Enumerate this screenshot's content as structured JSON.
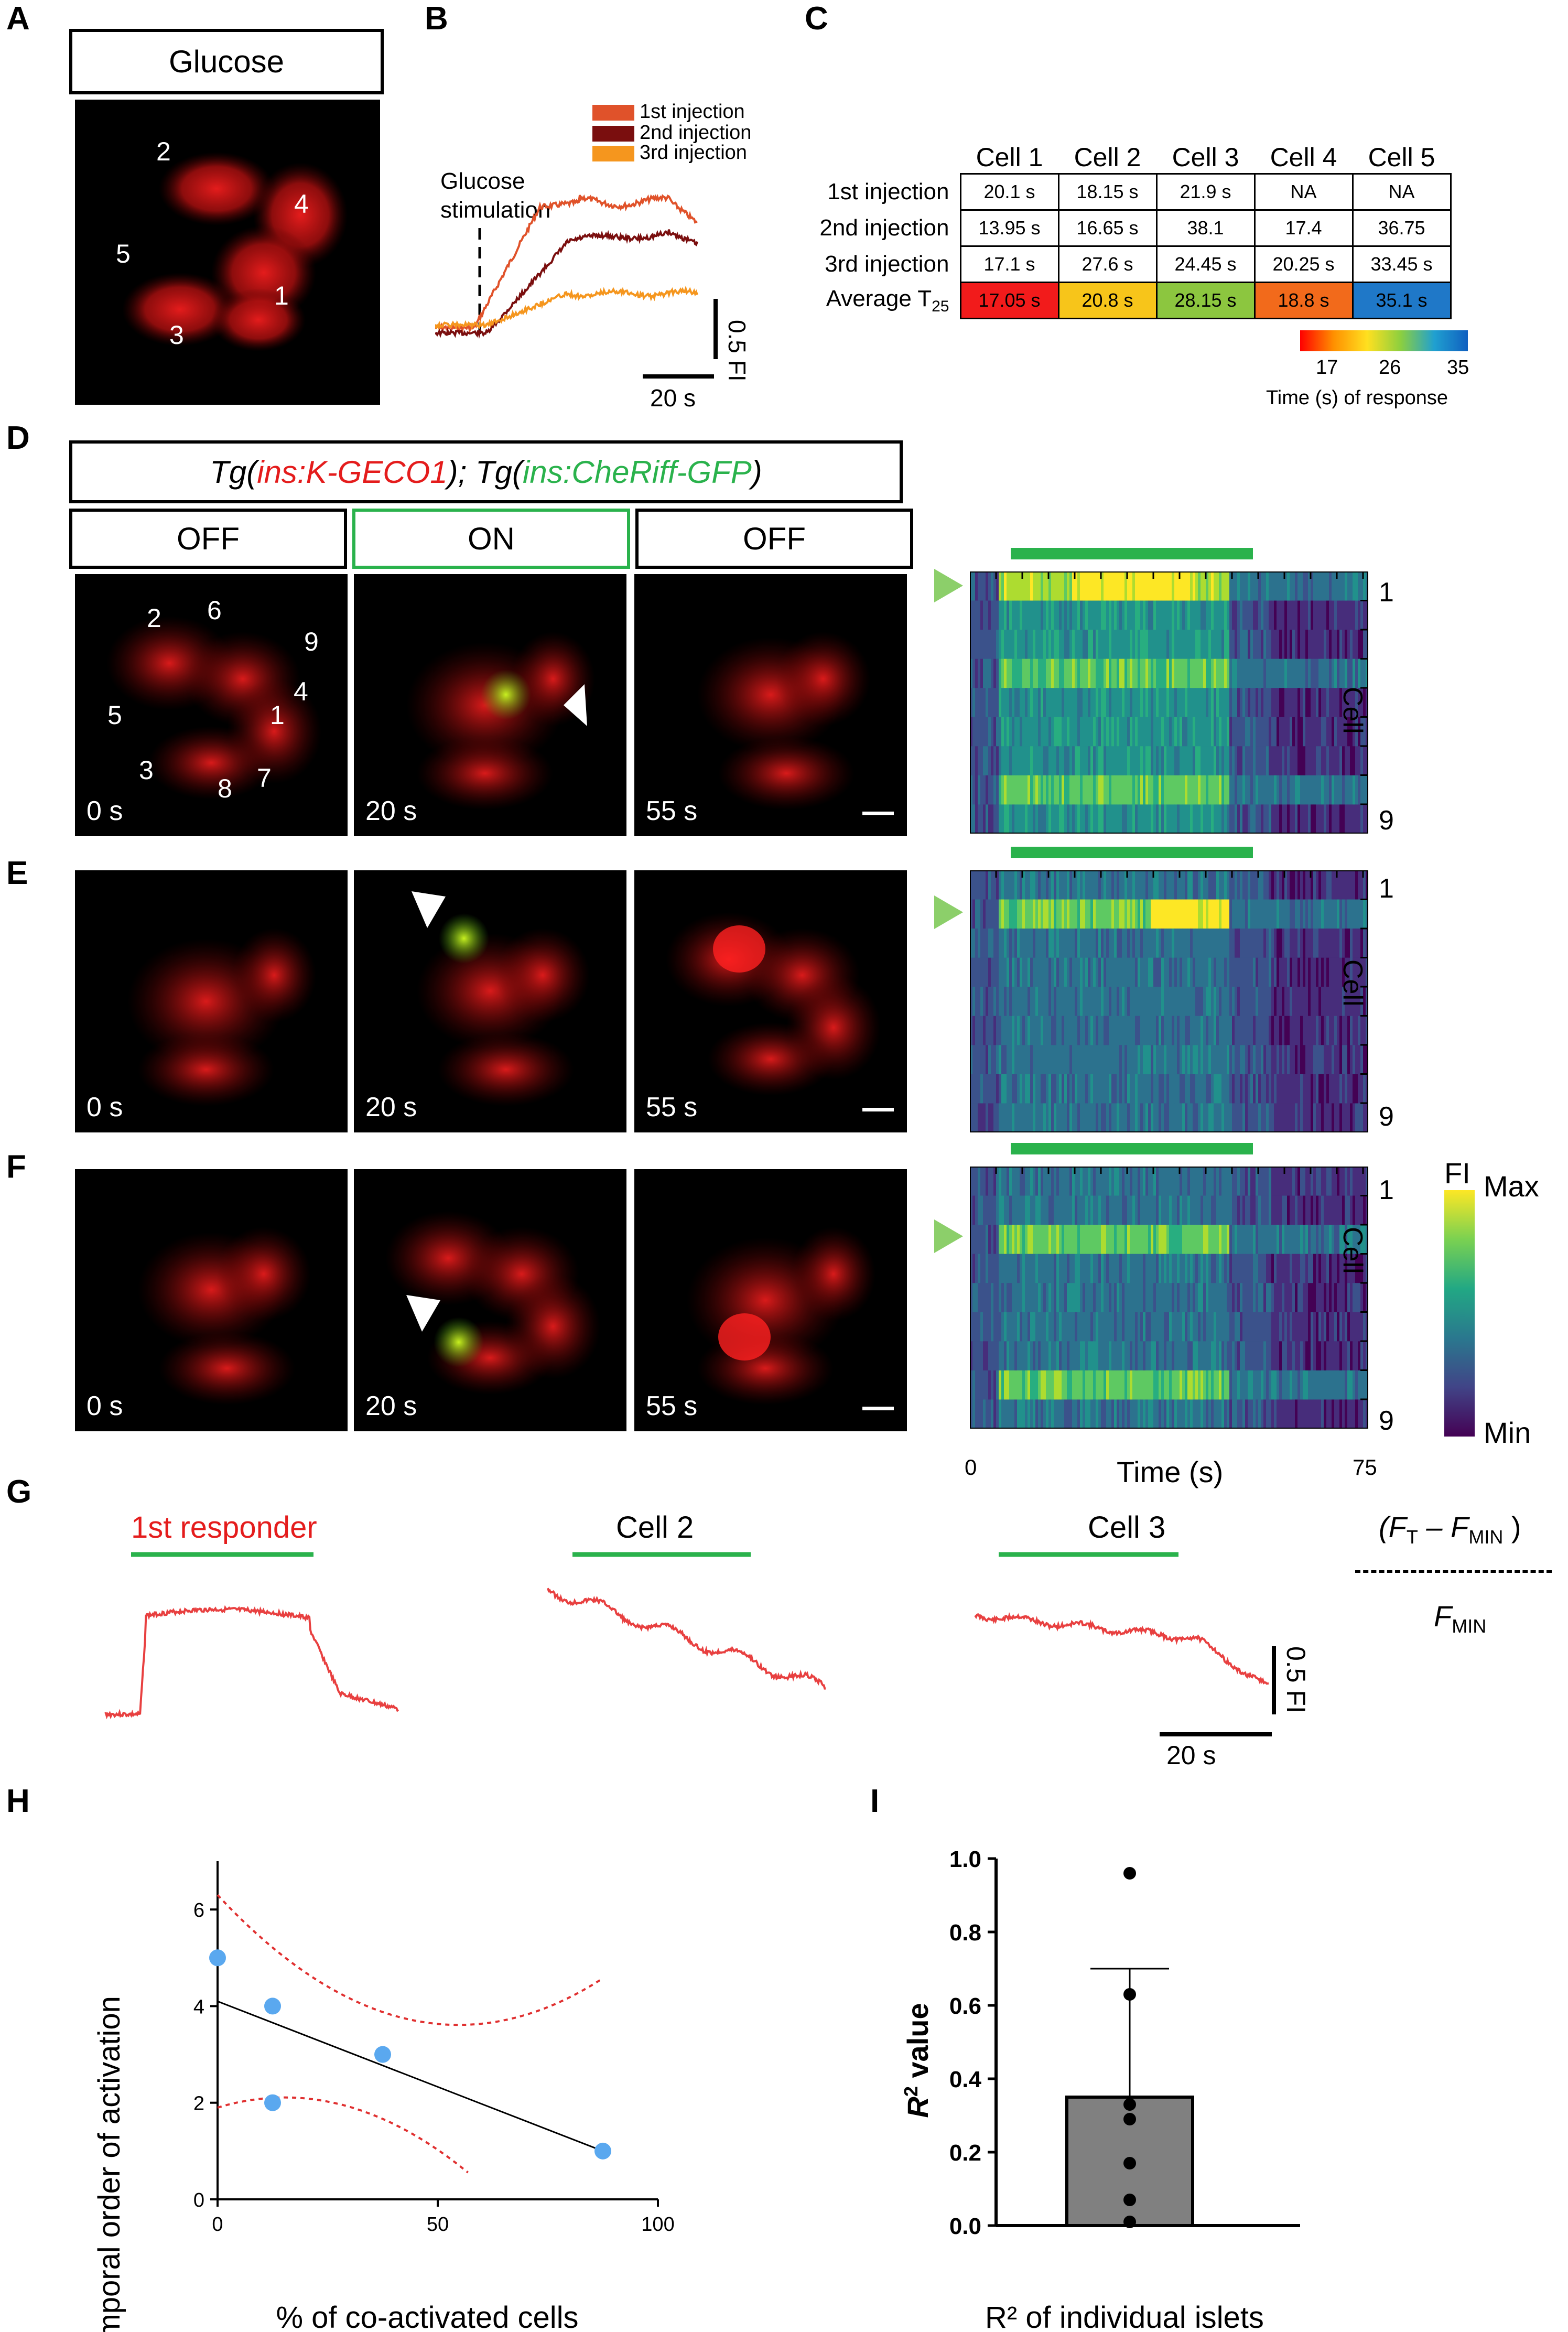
{
  "panels": [
    "A",
    "B",
    "C",
    "D",
    "E",
    "F",
    "G",
    "H",
    "I"
  ],
  "panelA": {
    "box_label": "Glucose",
    "cells": [
      "2",
      "4",
      "5",
      "1",
      "3"
    ]
  },
  "panelB": {
    "legend": [
      "1st injection",
      "2nd injection",
      "3rd injection"
    ],
    "colors": [
      "#e0522a",
      "#7a0e0e",
      "#f5961e"
    ],
    "stim_label_1": "Glucose",
    "stim_label_2": "stimulation",
    "scale_y": "0.5 FI",
    "scale_x": "20 s"
  },
  "panelC": {
    "columns": [
      "Cell 1",
      "Cell 2",
      "Cell 3",
      "Cell 4",
      "Cell 5"
    ],
    "rows": [
      {
        "label": "1st injection",
        "values": [
          "20.1 s",
          "18.15 s",
          "21.9 s",
          "NA",
          "NA"
        ]
      },
      {
        "label": "2nd injection",
        "values": [
          "13.95 s",
          "16.65 s",
          "38.1",
          "17.4",
          "36.75"
        ]
      },
      {
        "label": "3rd injection",
        "values": [
          "17.1 s",
          "27.6 s",
          "24.45 s",
          "20.25 s",
          "33.45 s"
        ]
      }
    ],
    "average_label": "Average T",
    "average_sub": "25",
    "averages": [
      "17.05 s",
      "20.8 s",
      "28.15 s",
      "18.8 s",
      "35.1 s"
    ],
    "average_colors": [
      "#f21b1b",
      "#f7c51a",
      "#8cc63f",
      "#f26a1b",
      "#1f78c8"
    ],
    "colorbar_ticks": [
      "17",
      "26",
      "35"
    ],
    "colorbar_label": "Time (s) of response"
  },
  "panelD": {
    "title_parts": [
      "Tg(",
      "ins:K-GECO1",
      "); Tg(",
      "ins:CheRiff-GFP",
      ")"
    ],
    "states": [
      "OFF",
      "ON",
      "OFF"
    ],
    "times": [
      "0 s",
      "20 s",
      "55 s"
    ],
    "cells": [
      "2",
      "6",
      "9",
      "4",
      "5",
      "1",
      "3",
      "8",
      "7"
    ],
    "heatmap_labels": [
      "1",
      "Cell",
      "9"
    ]
  },
  "panelE": {
    "times": [
      "0 s",
      "20 s",
      "55 s"
    ],
    "heatmap_labels": [
      "1",
      "Cell",
      "9"
    ]
  },
  "panelF": {
    "times": [
      "0 s",
      "20 s",
      "55 s"
    ],
    "heatmap_labels": [
      "1",
      "Cell",
      "9"
    ],
    "colorbar_title": "FI",
    "colorbar_max": "Max",
    "colorbar_min": "Min",
    "x_start": "0",
    "x_end": "75",
    "x_label": "Time (s)"
  },
  "panelG": {
    "traces": [
      "1st responder",
      "Cell 2",
      "Cell 3"
    ],
    "formula_num_open": "(F",
    "formula_num_t": "T",
    "formula_minus": " – F",
    "formula_num_min": "MIN",
    "formula_close": " )",
    "formula_den": "F",
    "formula_den_sub": "MIN",
    "scale_y": "0.5 FI",
    "scale_x": "20 s"
  },
  "chart_data": [
    {
      "type": "scatter",
      "panel": "H",
      "x": [
        0,
        12.5,
        12.5,
        37.5,
        87.5
      ],
      "y": [
        5,
        4,
        2,
        3,
        1
      ],
      "fit": {
        "x": [
          0,
          87.5
        ],
        "y": [
          4.1,
          1.0
        ]
      },
      "xlabel": "% of co-activated cells",
      "ylabel": "Temporal order of activation",
      "xlim": [
        0,
        100
      ],
      "ylim": [
        0,
        7
      ],
      "xticks": [
        0,
        50,
        100
      ],
      "yticks": [
        0,
        2,
        4,
        6
      ],
      "point_color": "#5aa8ef",
      "ci_color": "#e03030"
    },
    {
      "type": "bar",
      "panel": "I",
      "categories": [
        ""
      ],
      "values": [
        0.35
      ],
      "error_upper": 0.7,
      "points": [
        0.96,
        0.63,
        0.33,
        0.29,
        0.17,
        0.07,
        0.01
      ],
      "xlabel": "R² of individual islets",
      "ylabel_main": "R",
      "ylabel_sup": "2",
      "ylabel_rest": " value",
      "ylim": [
        0,
        1.0
      ],
      "yticks": [
        "0.0",
        "0.2",
        "0.4",
        "0.6",
        "0.8",
        "1.0"
      ],
      "bar_color": "#808080"
    }
  ]
}
